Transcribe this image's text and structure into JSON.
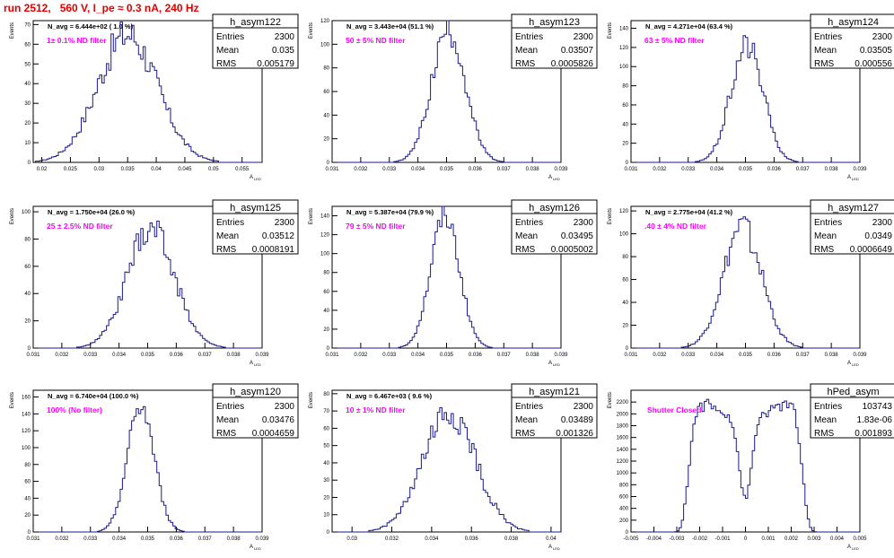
{
  "page_title": "run 2512,   560 V, I_pe ≈ 0.3 nA, 240 Hz",
  "y_axis_label": "Events",
  "x_axis_label": "A",
  "x_axis_subscript": "LED",
  "stats_labels": {
    "entries": "Entries",
    "mean": "Mean",
    "rms": "RMS"
  },
  "colors": {
    "histogram": "#1a1a8c",
    "annotation": "#ff00ff",
    "title": "#e00000",
    "frame": "#000000"
  },
  "chart_data": [
    {
      "type": "histogram",
      "name": "h_asym122",
      "header": "N_avg = 6.444e+02 ( 1.0 %)",
      "filter": "1± 0.1% ND filter",
      "stats": {
        "entries": "2300",
        "mean": "0.035",
        "rms": "0.005179"
      },
      "xlim": [
        0.0185,
        0.0585
      ],
      "ylim": [
        0,
        72
      ],
      "xticks": [
        0.02,
        0.025,
        0.03,
        0.035,
        0.04,
        0.045,
        0.05,
        0.055
      ],
      "xtick_labels": [
        "0.02",
        "0.025",
        "0.03",
        "0.035",
        "0.04",
        "0.045",
        "0.05",
        "0.055"
      ],
      "yticks": [
        0,
        10,
        20,
        30,
        40,
        50,
        60,
        70
      ],
      "mean": 0.035,
      "sigma": 0.005179,
      "peak": 65,
      "jitter": 0.15
    },
    {
      "type": "histogram",
      "name": "h_asym123",
      "header": "N_avg = 3.443e+04 (51.1 %)",
      "filter": "50 ± 5% ND filter",
      "stats": {
        "entries": "2300",
        "mean": "0.03507",
        "rms": "0.0005826"
      },
      "xlim": [
        0.031,
        0.039
      ],
      "ylim": [
        0,
        120
      ],
      "xticks": [
        0.031,
        0.032,
        0.033,
        0.034,
        0.035,
        0.036,
        0.037,
        0.038,
        0.039
      ],
      "xtick_labels": [
        "0.031",
        "0.032",
        "0.033",
        "0.034",
        "0.035",
        "0.036",
        "0.037",
        "0.038",
        "0.039"
      ],
      "yticks": [
        0,
        20,
        40,
        60,
        80,
        100,
        120
      ],
      "mean": 0.03507,
      "sigma": 0.0005826,
      "peak": 112,
      "jitter": 0.12
    },
    {
      "type": "histogram",
      "name": "h_asym124",
      "header": "N_avg = 4.271e+04 (63.4 %)",
      "filter": "63 ± 5% ND filter",
      "stats": {
        "entries": "2300",
        "mean": "0.03505",
        "rms": "0.000556"
      },
      "xlim": [
        0.031,
        0.039
      ],
      "ylim": [
        0,
        148
      ],
      "xticks": [
        0.031,
        0.032,
        0.033,
        0.034,
        0.035,
        0.036,
        0.037,
        0.038,
        0.039
      ],
      "xtick_labels": [
        "0.031",
        "0.032",
        "0.033",
        "0.034",
        "0.035",
        "0.036",
        "0.037",
        "0.038",
        "0.039"
      ],
      "yticks": [
        0,
        20,
        40,
        60,
        80,
        100,
        120,
        140
      ],
      "mean": 0.03505,
      "sigma": 0.000556,
      "peak": 125,
      "jitter": 0.12
    },
    {
      "type": "histogram",
      "name": "h_asym125",
      "header": "N_avg = 1.750e+04 (26.0 %)",
      "filter": "25 ± 2.5% ND filter",
      "stats": {
        "entries": "2300",
        "mean": "0.03512",
        "rms": "0.0008191"
      },
      "xlim": [
        0.031,
        0.039
      ],
      "ylim": [
        0,
        104
      ],
      "xticks": [
        0.031,
        0.032,
        0.033,
        0.034,
        0.035,
        0.036,
        0.037,
        0.038,
        0.039
      ],
      "xtick_labels": [
        "0.031",
        "0.032",
        "0.033",
        "0.034",
        "0.035",
        "0.036",
        "0.037",
        "0.038",
        "0.039"
      ],
      "yticks": [
        0,
        20,
        40,
        60,
        80,
        100
      ],
      "mean": 0.03512,
      "sigma": 0.0008191,
      "peak": 88,
      "jitter": 0.14
    },
    {
      "type": "histogram",
      "name": "h_asym126",
      "header": "N_avg = 5.387e+04 (79.9 %)",
      "filter": "79 ± 5% ND filter",
      "stats": {
        "entries": "2300",
        "mean": "0.03495",
        "rms": "0.0005002"
      },
      "xlim": [
        0.031,
        0.039
      ],
      "ylim": [
        0,
        150
      ],
      "xticks": [
        0.031,
        0.032,
        0.033,
        0.034,
        0.035,
        0.036,
        0.037,
        0.038,
        0.039
      ],
      "xtick_labels": [
        "0.031",
        "0.032",
        "0.033",
        "0.034",
        "0.035",
        "0.036",
        "0.037",
        "0.038",
        "0.039"
      ],
      "yticks": [
        0,
        20,
        40,
        60,
        80,
        100,
        120,
        140
      ],
      "mean": 0.03495,
      "sigma": 0.0005002,
      "peak": 140,
      "jitter": 0.1
    },
    {
      "type": "histogram",
      "name": "h_asym127",
      "header": "N_avg = 2.775e+04 (41.2 %)",
      "filter": ".40 ± 4% ND filter",
      "stats": {
        "entries": "2300",
        "mean": "0.0349",
        "rms": "0.0006649"
      },
      "xlim": [
        0.031,
        0.039
      ],
      "ylim": [
        0,
        124
      ],
      "xticks": [
        0.031,
        0.032,
        0.033,
        0.034,
        0.035,
        0.036,
        0.037,
        0.038,
        0.039
      ],
      "xtick_labels": [
        "0.031",
        "0.032",
        "0.033",
        "0.034",
        "0.035",
        "0.036",
        "0.037",
        "0.038",
        "0.039"
      ],
      "yticks": [
        0,
        20,
        40,
        60,
        80,
        100,
        120
      ],
      "mean": 0.0349,
      "sigma": 0.0006649,
      "peak": 105,
      "jitter": 0.13
    },
    {
      "type": "histogram",
      "name": "h_asym120",
      "header": "N_avg = 6.740e+04 (100.0 %)",
      "filter": "100% (No filter)",
      "stats": {
        "entries": "2300",
        "mean": "0.03476",
        "rms": "0.0004659"
      },
      "xlim": [
        0.031,
        0.039
      ],
      "ylim": [
        0,
        168
      ],
      "xticks": [
        0.031,
        0.032,
        0.033,
        0.034,
        0.035,
        0.036,
        0.037,
        0.038,
        0.039
      ],
      "xtick_labels": [
        "0.031",
        "0.032",
        "0.033",
        "0.034",
        "0.035",
        "0.036",
        "0.037",
        "0.038",
        "0.039"
      ],
      "yticks": [
        0,
        20,
        40,
        60,
        80,
        100,
        120,
        140,
        160
      ],
      "mean": 0.03476,
      "sigma": 0.0004659,
      "peak": 150,
      "jitter": 0.1
    },
    {
      "type": "histogram",
      "name": "h_asym121",
      "header": "N_avg = 6.467e+03 ( 9.6 %)",
      "filter": "10 ± 1% ND filter",
      "stats": {
        "entries": "2300",
        "mean": "0.03489",
        "rms": "0.001326"
      },
      "xlim": [
        0.029,
        0.0405
      ],
      "ylim": [
        0,
        82
      ],
      "xticks": [
        0.03,
        0.032,
        0.034,
        0.036,
        0.038,
        0.04
      ],
      "xtick_labels": [
        "0.03",
        "0.032",
        "0.034",
        "0.036",
        "0.038",
        "0.04"
      ],
      "yticks": [
        0,
        10,
        20,
        30,
        40,
        50,
        60,
        70,
        80
      ],
      "mean": 0.03489,
      "sigma": 0.001326,
      "peak": 68,
      "jitter": 0.15
    },
    {
      "type": "histogram",
      "name": "hPed_asym",
      "header": "",
      "filter": "Shutter Closed",
      "stats": {
        "entries": "103743",
        "mean": "1.83e-06",
        "rms": "0.001893"
      },
      "xlim": [
        -0.005,
        0.005
      ],
      "ylim": [
        0,
        2400
      ],
      "xticks": [
        -0.005,
        -0.004,
        -0.003,
        -0.002,
        -0.001,
        0,
        0.001,
        0.002,
        0.003,
        0.004,
        0.005
      ],
      "xtick_labels": [
        "-0.005",
        "-0.004",
        "-0.003",
        "-0.002",
        "-0.001",
        "0",
        "0.001",
        "0.002",
        "0.003",
        "0.004",
        "0.005"
      ],
      "yticks": [
        0,
        200,
        400,
        600,
        800,
        1000,
        1200,
        1400,
        1600,
        1800,
        2000,
        2200
      ],
      "bimodal": true,
      "peak": 2150,
      "mean": 0.0,
      "sigma": 0.0008,
      "jitter": 0.05
    }
  ]
}
